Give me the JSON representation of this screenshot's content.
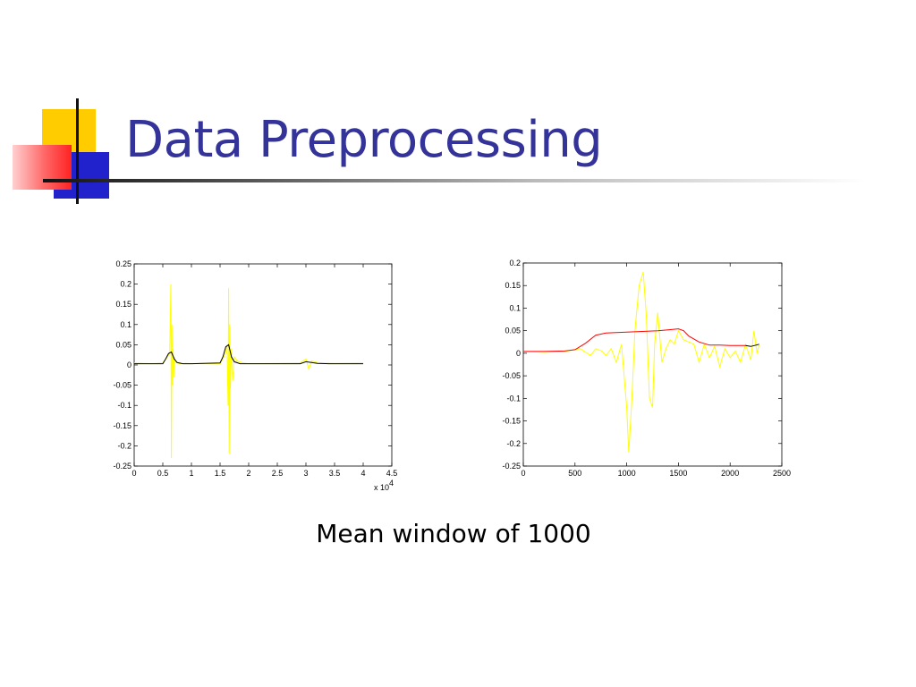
{
  "slide": {
    "title": "Data Preprocessing",
    "caption": "Mean window of 1000",
    "colors": {
      "title": "#333399",
      "accent_yellow": "#ffcc00",
      "accent_blue": "#2222cc",
      "accent_red": "#ff3333"
    }
  },
  "chart_data": [
    {
      "type": "line",
      "xlim": [
        0,
        4.5
      ],
      "ylim": [
        -0.25,
        0.25
      ],
      "x_ticks": [
        "0",
        "0.5",
        "1",
        "1.5",
        "2",
        "2.5",
        "3",
        "3.5",
        "4",
        "4.5"
      ],
      "y_ticks": [
        "0.25",
        "0.2",
        "0.15",
        "0.1",
        "0.05",
        "0",
        "-0.05",
        "-0.1",
        "-0.15",
        "-0.2",
        "-0.25"
      ],
      "x_multiplier": "x 10",
      "x_multiplier_exp": "4",
      "grid": false,
      "series": [
        {
          "color": "#ffff00",
          "x": [
            0,
            0.3,
            0.5,
            0.58,
            0.62,
            0.64,
            0.65,
            0.66,
            0.67,
            0.68,
            0.69,
            0.7,
            0.72,
            0.75,
            0.8,
            0.9,
            1.0,
            1.2,
            1.5,
            1.6,
            1.62,
            1.64,
            1.65,
            1.66,
            1.67,
            1.68,
            1.7,
            1.72,
            1.75,
            1.8,
            1.9,
            2.0,
            2.5,
            2.9,
            3.0,
            3.05,
            3.1,
            3.2,
            3.3,
            3.5,
            4.0
          ],
          "y": [
            0.005,
            0.003,
            0.005,
            0.02,
            0.03,
            0.2,
            -0.23,
            0.1,
            -0.05,
            0.04,
            -0.03,
            0.02,
            0.01,
            0.005,
            0.003,
            0.004,
            0.003,
            0.004,
            0.003,
            0.03,
            0.05,
            -0.1,
            0.19,
            -0.22,
            0.1,
            -0.06,
            0.04,
            -0.04,
            0.02,
            0.01,
            0.005,
            0.003,
            0.004,
            0.005,
            0.015,
            -0.01,
            0.01,
            0.006,
            0.005,
            0.004,
            0.005
          ]
        },
        {
          "color": "#000000",
          "x": [
            0,
            0.5,
            0.55,
            0.6,
            0.65,
            0.7,
            0.75,
            0.85,
            1.0,
            1.5,
            1.55,
            1.6,
            1.65,
            1.7,
            1.75,
            1.85,
            2.0,
            2.9,
            3.0,
            3.1,
            3.2,
            3.4,
            4.0
          ],
          "y": [
            0.003,
            0.003,
            0.015,
            0.028,
            0.032,
            0.015,
            0.006,
            0.003,
            0.003,
            0.005,
            0.02,
            0.045,
            0.05,
            0.02,
            0.008,
            0.003,
            0.003,
            0.003,
            0.008,
            0.006,
            0.004,
            0.003,
            0.003
          ]
        }
      ]
    },
    {
      "type": "line",
      "xlim": [
        0,
        2500
      ],
      "ylim": [
        -0.25,
        0.2
      ],
      "x_ticks": [
        "0",
        "500",
        "1000",
        "1500",
        "2000",
        "2500"
      ],
      "y_ticks": [
        "0.2",
        "0.15",
        "0.1",
        "0.05",
        "0",
        "-0.05",
        "-0.1",
        "-0.15",
        "-0.2",
        "-0.25"
      ],
      "grid": false,
      "series": [
        {
          "color": "#ffff00",
          "x": [
            0,
            200,
            400,
            550,
            650,
            700,
            760,
            800,
            850,
            900,
            950,
            1000,
            1020,
            1050,
            1080,
            1120,
            1160,
            1190,
            1220,
            1250,
            1270,
            1300,
            1340,
            1380,
            1420,
            1460,
            1500,
            1550,
            1600,
            1650,
            1700,
            1750,
            1800,
            1850,
            1900,
            1950,
            2000,
            2050,
            2100,
            2150,
            2200,
            2230,
            2260,
            2280
          ],
          "y": [
            0.004,
            0.002,
            0.004,
            0.01,
            -0.005,
            0.01,
            0.005,
            -0.005,
            0.01,
            -0.02,
            0.02,
            -0.12,
            -0.22,
            -0.1,
            0.05,
            0.15,
            0.18,
            0.08,
            -0.1,
            -0.12,
            0.02,
            0.09,
            -0.02,
            0.01,
            0.03,
            0.02,
            0.05,
            0.03,
            0.025,
            0.02,
            -0.02,
            0.02,
            -0.01,
            0.015,
            -0.03,
            0.01,
            -0.01,
            0.005,
            -0.02,
            0.02,
            -0.015,
            0.05,
            0.0,
            0.02
          ]
        },
        {
          "color": "#ff0000",
          "x": [
            0,
            200,
            400,
            500,
            600,
            700,
            800,
            900,
            1000,
            1100,
            1200,
            1300,
            1400,
            1500,
            1550,
            1600,
            1700,
            1800,
            1900,
            2000,
            2100,
            2150
          ],
          "y": [
            0.004,
            0.004,
            0.005,
            0.008,
            0.022,
            0.04,
            0.045,
            0.046,
            0.047,
            0.048,
            0.049,
            0.05,
            0.052,
            0.054,
            0.05,
            0.038,
            0.025,
            0.018,
            0.018,
            0.017,
            0.017,
            0.017
          ]
        },
        {
          "color": "#000000",
          "x": [
            2150,
            2200,
            2250,
            2280
          ],
          "y": [
            0.017,
            0.015,
            0.018,
            0.02
          ]
        }
      ]
    }
  ]
}
